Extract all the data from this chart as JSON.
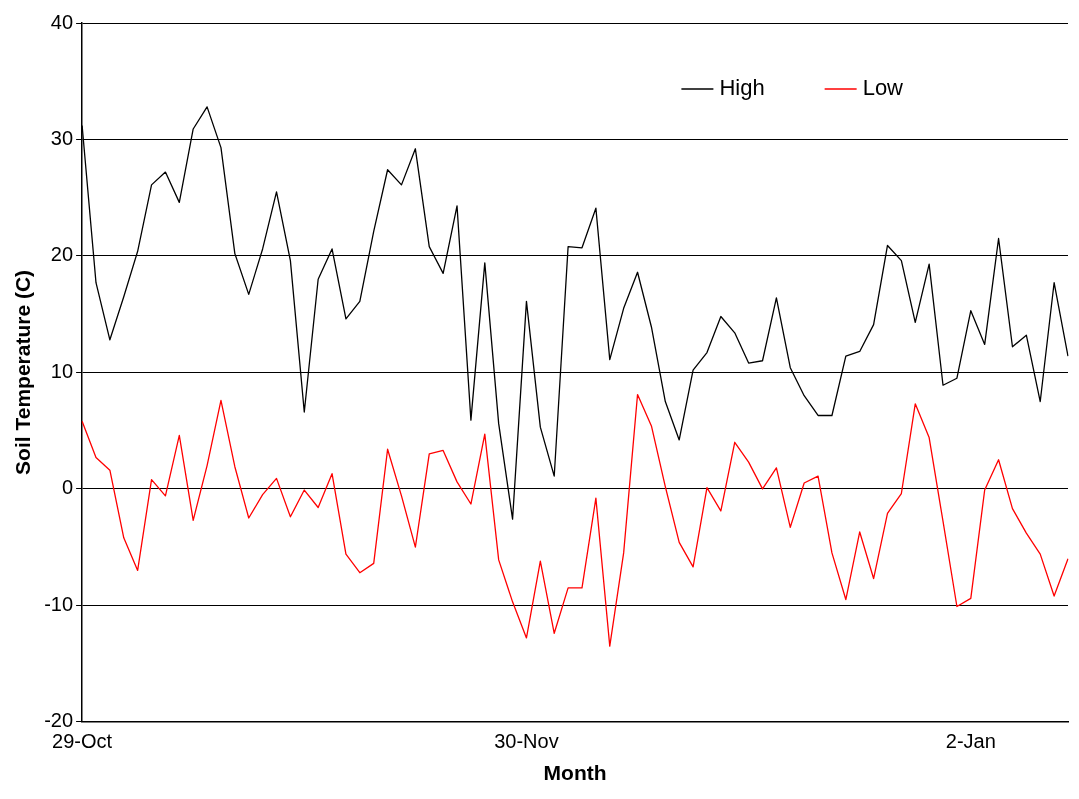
{
  "chart_data": {
    "type": "line",
    "xlabel": "Month",
    "ylabel": "Soil Temperature (C)",
    "categories": [
      "29-Oct",
      null,
      null,
      null,
      null,
      null,
      null,
      null,
      null,
      null,
      null,
      null,
      null,
      null,
      null,
      null,
      null,
      null,
      null,
      null,
      null,
      null,
      null,
      null,
      null,
      null,
      null,
      null,
      null,
      null,
      null,
      null,
      "30-Nov",
      null,
      null,
      null,
      null,
      null,
      null,
      null,
      null,
      null,
      null,
      null,
      null,
      null,
      null,
      null,
      null,
      null,
      null,
      null,
      null,
      null,
      null,
      null,
      null,
      null,
      null,
      null,
      null,
      null,
      null,
      null,
      "2-Jan",
      null,
      null,
      null,
      null,
      null,
      null,
      null
    ],
    "series": [
      {
        "name": "High",
        "color": "#000000",
        "values": [
          31.2,
          17.7,
          12.8,
          16.5,
          20.4,
          26.1,
          27.2,
          24.6,
          30.9,
          32.8,
          29.3,
          20.2,
          16.7,
          20.6,
          25.5,
          19.6,
          6.6,
          18.0,
          20.6,
          14.6,
          16.1,
          22.1,
          27.4,
          26.1,
          29.2,
          20.8,
          18.5,
          24.3,
          5.9,
          19.4,
          5.6,
          -2.6,
          16.1,
          5.3,
          1.1,
          20.8,
          20.7,
          24.1,
          11.1,
          15.5,
          18.6,
          13.9,
          7.5,
          4.2,
          10.2,
          11.7,
          14.8,
          13.4,
          10.8,
          11.0,
          16.4,
          10.4,
          8.0,
          6.3,
          6.3,
          11.4,
          11.8,
          14.1,
          20.9,
          19.6,
          14.3,
          19.3,
          8.9,
          9.5,
          15.3,
          12.4,
          21.5,
          12.2,
          13.2,
          7.5,
          17.7,
          11.4
        ]
      },
      {
        "name": "Low",
        "color": "#ff0000",
        "values": [
          5.8,
          2.7,
          1.6,
          -4.2,
          -7.0,
          0.8,
          -0.6,
          4.6,
          -2.7,
          2.0,
          7.6,
          1.9,
          -2.5,
          -0.5,
          0.9,
          -2.4,
          -0.1,
          -1.6,
          1.3,
          -5.6,
          -7.2,
          -6.4,
          3.4,
          -0.6,
          -5.0,
          3.0,
          3.3,
          0.6,
          -1.3,
          4.7,
          -6.1,
          -9.7,
          -12.8,
          -6.2,
          -12.4,
          -8.5,
          -8.5,
          -0.8,
          -13.5,
          -5.5,
          8.1,
          5.4,
          0.2,
          -4.6,
          -6.7,
          0.1,
          -1.9,
          4.0,
          2.3,
          0.0,
          1.8,
          -3.3,
          0.5,
          1.1,
          -5.5,
          -9.5,
          -3.7,
          -7.7,
          -2.1,
          -0.4,
          7.3,
          4.4,
          -2.8,
          -10.1,
          -9.4,
          -0.1,
          2.5,
          -1.7,
          -3.8,
          -5.6,
          -9.2,
          -6.0
        ]
      }
    ],
    "ylim": [
      -20,
      40
    ],
    "yticks": [
      -20,
      -10,
      0,
      10,
      20,
      30,
      40
    ],
    "grid": "y",
    "legend": "top right",
    "marker": "none",
    "line_style": "solid"
  }
}
